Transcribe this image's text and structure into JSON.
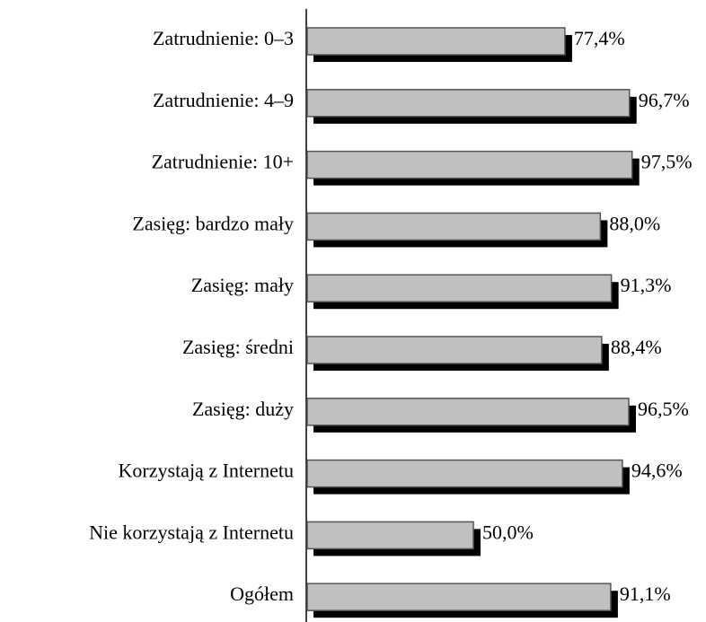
{
  "chart_data": {
    "type": "hbar",
    "categories": [
      "Zatrudnienie: 0–3",
      "Zatrudnienie: 4–9",
      "Zatrudnienie: 10+",
      "Zasięg: bardzo mały",
      "Zasięg: mały",
      "Zasięg: średni",
      "Zasięg: duży",
      "Korzystają z Internetu",
      "Nie korzystają z Internetu",
      "Ogółem"
    ],
    "values": [
      77.4,
      96.7,
      97.5,
      88.0,
      91.3,
      88.4,
      96.5,
      94.6,
      50.0,
      91.1
    ],
    "value_labels": [
      "77,4%",
      "96,7%",
      "97,5%",
      "88,0%",
      "91,3%",
      "88,4%",
      "96,5%",
      "94,6%",
      "50,0%",
      "91,1%"
    ],
    "color": "#c0c0c0",
    "xlim": [
      0,
      100
    ]
  }
}
